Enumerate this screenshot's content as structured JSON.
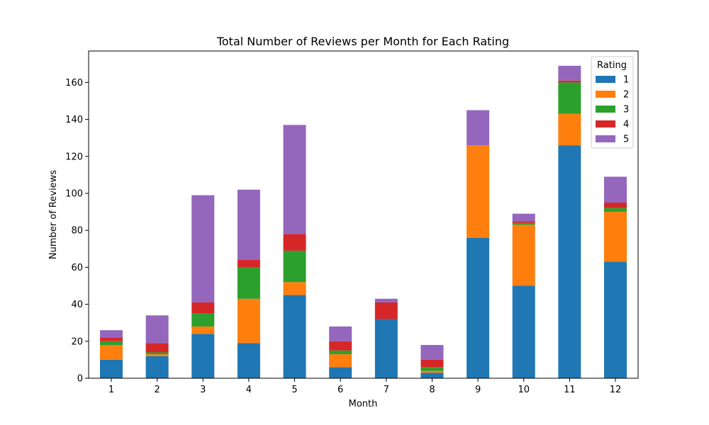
{
  "chart_data": {
    "type": "bar",
    "stacked": true,
    "title": "Total Number of Reviews per Month for Each Rating",
    "xlabel": "Month",
    "ylabel": "Number of Reviews",
    "categories": [
      "1",
      "2",
      "3",
      "4",
      "5",
      "6",
      "7",
      "8",
      "9",
      "10",
      "11",
      "12"
    ],
    "ylim": [
      0,
      177
    ],
    "yticks": [
      0,
      20,
      40,
      60,
      80,
      100,
      120,
      140,
      160
    ],
    "grid": false,
    "legend": {
      "title": "Rating",
      "placement": "top-right"
    },
    "series": [
      {
        "name": "1",
        "color": "#1f77b4",
        "values": [
          10,
          12,
          24,
          19,
          45,
          6,
          32,
          3,
          76,
          50,
          126,
          63
        ]
      },
      {
        "name": "2",
        "color": "#ff7f0e",
        "values": [
          8,
          1,
          4,
          24,
          7,
          7,
          0,
          1,
          50,
          33,
          17,
          27
        ]
      },
      {
        "name": "3",
        "color": "#2ca02c",
        "values": [
          2,
          1,
          7,
          17,
          17,
          2,
          0,
          2,
          0,
          1,
          17,
          2
        ]
      },
      {
        "name": "4",
        "color": "#d62728",
        "values": [
          2,
          5,
          6,
          4,
          9,
          5,
          9,
          4,
          0,
          1,
          1,
          3
        ]
      },
      {
        "name": "5",
        "color": "#9467bd",
        "values": [
          4,
          15,
          58,
          38,
          59,
          8,
          2,
          8,
          19,
          4,
          8,
          14
        ]
      }
    ]
  }
}
